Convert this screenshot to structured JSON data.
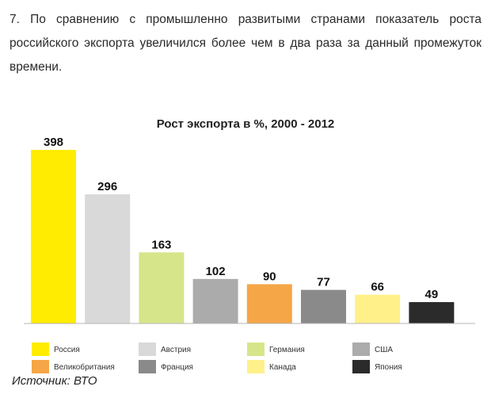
{
  "intro_text": "7. По сравнению с промышленно развитыми странами показатель роста российского экспорта увеличился более чем в два раза за данный промежуток времени.",
  "source": "Источник: ВТО",
  "chart_data": {
    "type": "bar",
    "title": "Рост экспорта в %, 2000 - 2012",
    "categories": [
      "Россия",
      "Австрия",
      "Германия",
      "США",
      "Великобритания",
      "Франция",
      "Канада",
      "Япония"
    ],
    "values": [
      398,
      296,
      163,
      102,
      90,
      77,
      66,
      49
    ],
    "colors": [
      "#ffec00",
      "#d9d9d9",
      "#d7e58a",
      "#ababab",
      "#f5a647",
      "#8a8a8a",
      "#fff08a",
      "#2b2b2b"
    ],
    "xlabel": "",
    "ylabel": "",
    "ylim": [
      0,
      398
    ],
    "grid": false,
    "legend": {
      "position": "bottom",
      "columns": 4,
      "order": [
        "Россия",
        "Австрия",
        "Германия",
        "США",
        "Великобритания",
        "Франция",
        "Канада",
        "Япония"
      ]
    }
  }
}
